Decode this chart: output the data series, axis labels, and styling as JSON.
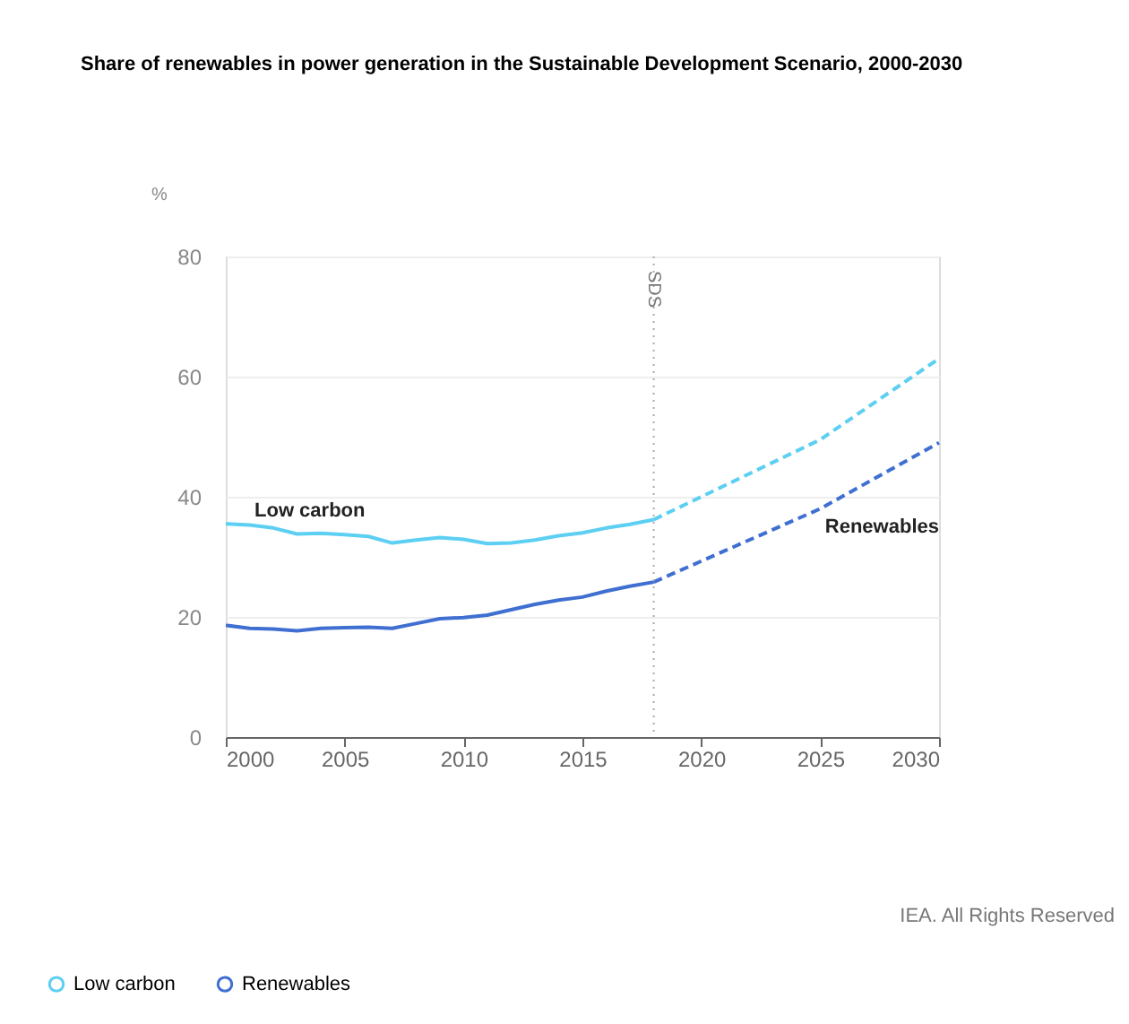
{
  "chart_data": {
    "type": "line",
    "title": "Share of renewables in power generation in the Sustainable Development Scenario, 2000-2030",
    "ylabel": "%",
    "x": [
      2000,
      2001,
      2002,
      2003,
      2004,
      2005,
      2006,
      2007,
      2008,
      2009,
      2010,
      2011,
      2012,
      2013,
      2014,
      2015,
      2016,
      2017,
      2018
    ],
    "series": [
      {
        "name": "Low carbon",
        "color": "#5ccff2",
        "line_style": "solid",
        "values": [
          35.5,
          35.3,
          34.8,
          33.8,
          33.9,
          33.7,
          33.4,
          32.3,
          32.8,
          33.2,
          32.9,
          32.2,
          32.3,
          32.8,
          33.5,
          34.0,
          34.8,
          35.4,
          36.2
        ]
      },
      {
        "name": "Renewables",
        "color": "#3f6fd1",
        "line_style": "solid",
        "values": [
          18.6,
          18.1,
          18.0,
          17.7,
          18.1,
          18.2,
          18.3,
          18.1,
          18.9,
          19.7,
          19.9,
          20.3,
          21.2,
          22.1,
          22.8,
          23.3,
          24.3,
          25.1,
          25.8
        ]
      },
      {
        "color": "#5ccff2",
        "line_style": "dashed",
        "x": [
          2018,
          2025,
          2030
        ],
        "values": [
          36.2,
          49.5,
          63
        ]
      },
      {
        "color": "#3f6fd1",
        "line_style": "dashed",
        "x": [
          2018,
          2025,
          2030
        ],
        "values": [
          25.8,
          38,
          49
        ]
      }
    ],
    "xlim": [
      2000,
      2030
    ],
    "xticks": [
      2000,
      2005,
      2010,
      2015,
      2020,
      2025,
      2030
    ],
    "ylim": [
      0,
      80
    ],
    "yticks": [
      0,
      20,
      40,
      60,
      80
    ],
    "ref_lines": [
      {
        "axis": "x",
        "value": 2018,
        "label": "SDS",
        "line_style": "dotted",
        "color": "#aaaaaa"
      }
    ],
    "annotations": [
      "Low carbon",
      "Renewables",
      "IEA. All Rights Reserved"
    ],
    "grid": "y",
    "legend": "bottom"
  }
}
